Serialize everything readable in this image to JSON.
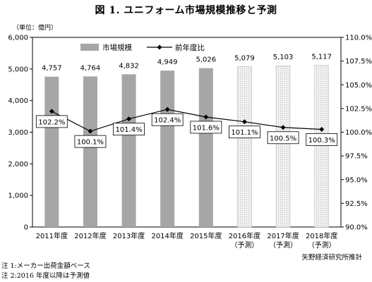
{
  "title": "図 1. ユニフォーム市場規模推移と予測",
  "unit_label": "（単位：億円）",
  "notes": [
    "注 1:メーカー出荷金額ベース",
    "注 2:2016 年度以降は予測値"
  ],
  "source": "矢野経済研究所推計",
  "colors": {
    "actual_bar": "#a6a6a6",
    "forecast_bar_fill": "#f0f0f0",
    "forecast_bar_stroke": "#bdbdbd",
    "line": "#000000"
  },
  "chart_data": {
    "type": "bar",
    "categories": [
      [
        "2011年度"
      ],
      [
        "2012年度"
      ],
      [
        "2013年度"
      ],
      [
        "2014年度"
      ],
      [
        "2015年度"
      ],
      [
        "2016年度",
        "（予測）"
      ],
      [
        "2017年度",
        "（予測）"
      ],
      [
        "2018年度",
        "（予測）"
      ]
    ],
    "forecast_from_index": 5,
    "series": [
      {
        "name": "市場規模",
        "type": "bar",
        "axis": "left",
        "values": [
          4757,
          4764,
          4832,
          4949,
          5026,
          5079,
          5103,
          5117
        ],
        "labels": [
          "4,757",
          "4,764",
          "4,832",
          "4,949",
          "5,026",
          "5,079",
          "5,103",
          "5,117"
        ]
      },
      {
        "name": "前年度比",
        "type": "line",
        "axis": "right",
        "marker": "diamond",
        "values": [
          102.2,
          100.1,
          101.4,
          102.4,
          101.6,
          101.1,
          100.5,
          100.3
        ],
        "labels": [
          "102.2%",
          "100.1%",
          "101.4%",
          "102.4%",
          "101.6%",
          "101.1%",
          "100.5%",
          "100.3%"
        ]
      }
    ],
    "y_left": {
      "min": 0,
      "max": 6000,
      "step": 1000,
      "ticks": [
        "0",
        "1,000",
        "2,000",
        "3,000",
        "4,000",
        "5,000",
        "6,000"
      ]
    },
    "y_right": {
      "min": 90,
      "max": 110,
      "step": 2.5,
      "ticks": [
        "90.0%",
        "92.5%",
        "95.0%",
        "97.5%",
        "100.0%",
        "102.5%",
        "105.0%",
        "107.5%",
        "110.0%"
      ]
    },
    "grid": false,
    "legend": "top-left"
  }
}
